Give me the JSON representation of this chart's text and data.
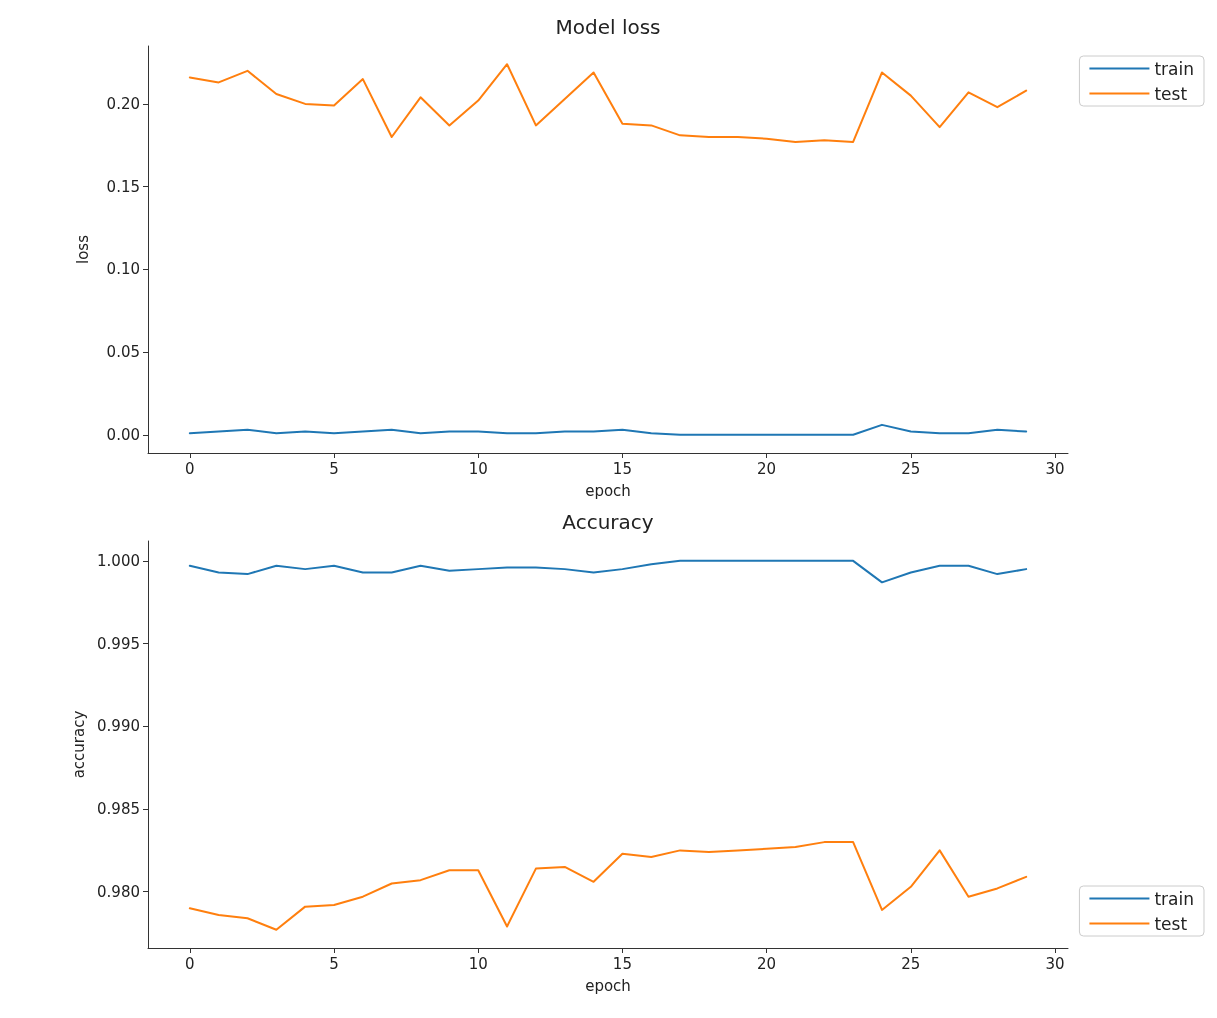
{
  "chart_data": [
    {
      "type": "line",
      "title": "Model loss",
      "xlabel": "epoch",
      "ylabel": "loss",
      "x": [
        0,
        1,
        2,
        3,
        4,
        5,
        6,
        7,
        8,
        9,
        10,
        11,
        12,
        13,
        14,
        15,
        16,
        17,
        18,
        19,
        20,
        21,
        22,
        23,
        24,
        25,
        26,
        27,
        28,
        29
      ],
      "series": [
        {
          "name": "train",
          "color": "#1f77b4",
          "values": [
            0.001,
            0.002,
            0.003,
            0.001,
            0.002,
            0.001,
            0.002,
            0.003,
            0.001,
            0.002,
            0.002,
            0.001,
            0.001,
            0.002,
            0.002,
            0.003,
            0.001,
            0,
            0,
            0,
            0,
            0,
            0,
            0,
            0.006,
            0.002,
            0.001,
            0.001,
            0.003,
            0.002
          ]
        },
        {
          "name": "test",
          "color": "#ff7f0e",
          "values": [
            0.216,
            0.213,
            0.22,
            0.206,
            0.2,
            0.199,
            0.215,
            0.18,
            0.204,
            0.187,
            0.202,
            0.224,
            0.187,
            0.203,
            0.219,
            0.188,
            0.187,
            0.181,
            0.18,
            0.18,
            0.179,
            0.177,
            0.178,
            0.177,
            0.219,
            0.205,
            0.186,
            0.207,
            0.198,
            0.208
          ]
        }
      ],
      "xlim": [
        -1.45,
        30.45
      ],
      "xticks": [
        0,
        5,
        10,
        15,
        20,
        25,
        30
      ],
      "ylim": [
        -0.011,
        0.235
      ],
      "yticks": [
        {
          "value": 0,
          "label": "0.00"
        },
        {
          "value": 0.05,
          "label": "0.05"
        },
        {
          "value": 0.1,
          "label": "0.10"
        },
        {
          "value": 0.15,
          "label": "0.15"
        },
        {
          "value": 0.2,
          "label": "0.20"
        }
      ],
      "grid": false,
      "legend": "top right",
      "marker": "none",
      "line_style": "solid"
    },
    {
      "type": "line",
      "title": "Accuracy",
      "xlabel": "epoch",
      "ylabel": "accuracy",
      "x": [
        0,
        1,
        2,
        3,
        4,
        5,
        6,
        7,
        8,
        9,
        10,
        11,
        12,
        13,
        14,
        15,
        16,
        17,
        18,
        19,
        20,
        21,
        22,
        23,
        24,
        25,
        26,
        27,
        28,
        29
      ],
      "series": [
        {
          "name": "train",
          "color": "#1f77b4",
          "values": [
            0.9997,
            0.9993,
            0.9992,
            0.9997,
            0.9995,
            0.9997,
            0.9993,
            0.9993,
            0.9997,
            0.9994,
            0.9995,
            0.9996,
            0.9996,
            0.9995,
            0.9993,
            0.9995,
            0.9998,
            1,
            1,
            1,
            1,
            1,
            1,
            1,
            0.9987,
            0.9993,
            0.9997,
            0.9997,
            0.9992,
            0.9995
          ]
        },
        {
          "name": "test",
          "color": "#ff7f0e",
          "values": [
            0.979,
            0.9786,
            0.9784,
            0.9777,
            0.9791,
            0.9792,
            0.9797,
            0.9805,
            0.9807,
            0.9813,
            0.9813,
            0.9779,
            0.9814,
            0.9815,
            0.9806,
            0.9823,
            0.9821,
            0.9825,
            0.9824,
            0.9825,
            0.9826,
            0.9827,
            0.983,
            0.983,
            0.9789,
            0.9803,
            0.9825,
            0.9797,
            0.9802,
            0.9809
          ]
        }
      ],
      "xlim": [
        -1.45,
        30.45
      ],
      "xticks": [
        0,
        5,
        10,
        15,
        20,
        25,
        30
      ],
      "ylim": [
        0.9766,
        1.0012
      ],
      "yticks": [
        {
          "value": 0.98,
          "label": "0.980"
        },
        {
          "value": 0.985,
          "label": "0.985"
        },
        {
          "value": 0.99,
          "label": "0.990"
        },
        {
          "value": 0.995,
          "label": "0.995"
        },
        {
          "value": 1,
          "label": "1.000"
        }
      ],
      "grid": false,
      "legend": "bottom right",
      "marker": "none",
      "line_style": "solid"
    }
  ]
}
